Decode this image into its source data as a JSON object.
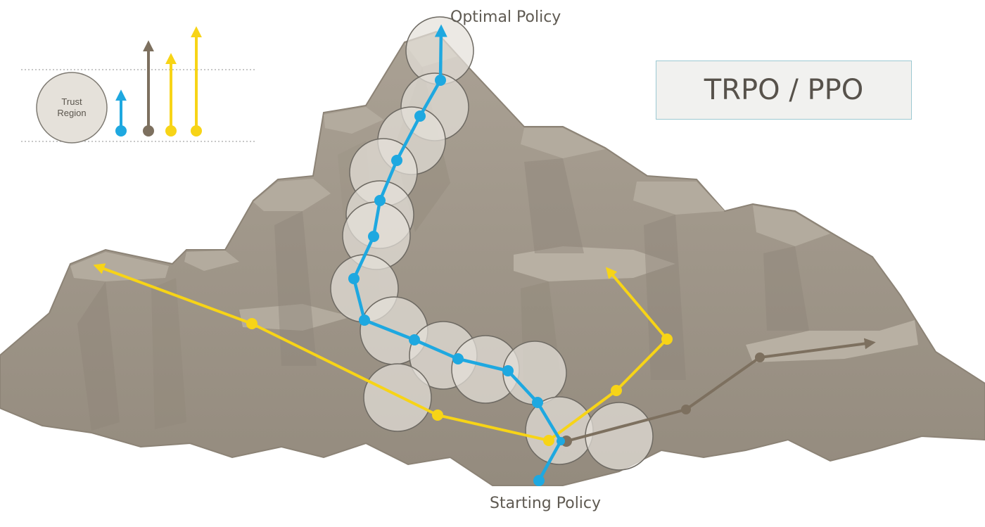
{
  "labels": {
    "optimal": "Optimal Policy",
    "starting": "Starting Policy",
    "title": "TRPO / PPO"
  },
  "legend": {
    "trust_region_line1": "Trust",
    "trust_region_line2": "Region"
  },
  "colors": {
    "blue": "#1ea8e0",
    "yellow": "#f7d417",
    "brown": "#7d705f",
    "rock": "#a39a8c",
    "rock_dark": "#867d70",
    "rock_light": "#bcb4a6",
    "circle_fill": "#e5e1da"
  }
}
